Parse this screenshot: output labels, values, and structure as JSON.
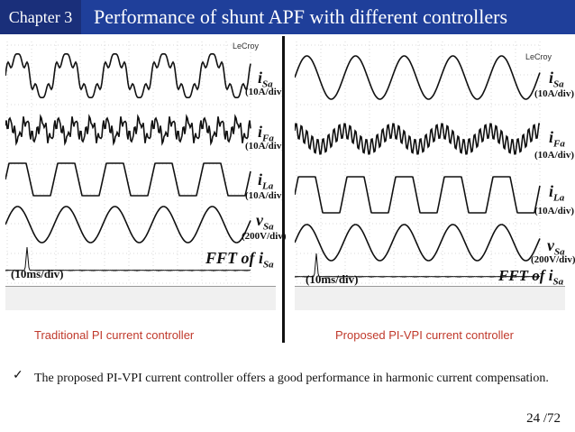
{
  "header": {
    "chapter": "Chapter 3",
    "title": "Performance of shunt APF with different controllers",
    "chapter_bg": "#1a2f7a",
    "title_bg": "#1f3f9a"
  },
  "scopes": {
    "left": {
      "brand": "LeCroy",
      "labels": {
        "isa": "i",
        "isa_sub": "Sa",
        "isa_unit": "(10A/div)",
        "ifa": "i",
        "ifa_sub": "Fa",
        "ifa_unit": "(10A/div)",
        "ila": "i",
        "ila_sub": "La",
        "ila_unit": "(10A/div)",
        "vsa": "v",
        "vsa_sub": "Sa",
        "vsa_unit": "(200V/div)",
        "fft": "FFT of i",
        "fft_sub": "Sa",
        "time": "(10ms/div)"
      },
      "caption": "Traditional PI current controller"
    },
    "right": {
      "brand": "LeCroy",
      "labels": {
        "isa": "i",
        "isa_sub": "Sa",
        "isa_unit": "(10A/div)",
        "ifa": "i",
        "ifa_sub": "Fa",
        "ifa_unit": "(10A/div)",
        "ila": "i",
        "ila_sub": "La",
        "ila_unit": "(10A/div)",
        "vsa": "v",
        "vsa_sub": "Sa",
        "vsa_unit": "(200V/div)",
        "fft": "FFT of i",
        "fft_sub": "Sa",
        "time": "(10ms/div)"
      },
      "caption": "Proposed PI-VPI current controller"
    }
  },
  "bullet": {
    "icon": "check-icon",
    "text": "The proposed PI-VPI current controller offers a good performance in harmonic current compensation."
  },
  "page": "24 /72"
}
